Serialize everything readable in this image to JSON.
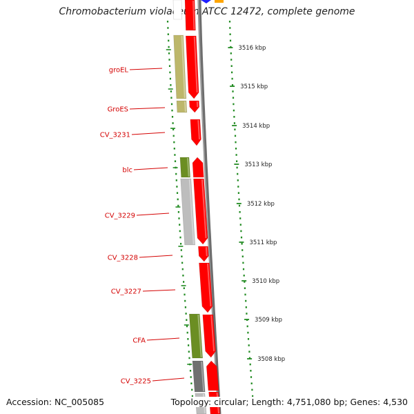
{
  "title": "Chromobacterium violaceum ATCC 12472, complete genome",
  "accession_text": "Accession: NC_005085",
  "summary_text": "Topology: circular; Length: 4,751,080 bp; Genes: 4,530",
  "colors": {
    "cds_forward": "#ff0000",
    "cds_reverse_green": "#6b8e23",
    "cds_reverse_khaki": "#bdb76b",
    "cds_reverse_gray": "#bdbdbd",
    "cds_reverse_dark": "#707070",
    "backbone": "#808080",
    "label": "#d40000",
    "ruler_dots": "#228b22"
  },
  "genes": [
    {
      "label": "groEL",
      "strand": "reverse",
      "color": "khaki"
    },
    {
      "label": "GroES",
      "strand": "reverse",
      "color": "khaki"
    },
    {
      "label": "CV_3231",
      "strand": "forward",
      "color": "red"
    },
    {
      "label": "blc",
      "strand": "reverse",
      "color": "green"
    },
    {
      "label": "CV_3229",
      "strand": "reverse",
      "color": "gray"
    },
    {
      "label": "CV_3228",
      "strand": "forward",
      "color": "red"
    },
    {
      "label": "CV_3227",
      "strand": "forward",
      "color": "red"
    },
    {
      "label": "CFA",
      "strand": "reverse",
      "color": "green"
    },
    {
      "label": "CV_3225",
      "strand": "reverse",
      "color": "dark"
    }
  ],
  "ruler_ticks": [
    "3516 kbp",
    "3515 kbp",
    "3514 kbp",
    "3513 kbp",
    "3512 kbp",
    "3511 kbp",
    "3510 kbp",
    "3509 kbp",
    "3508 kbp"
  ]
}
